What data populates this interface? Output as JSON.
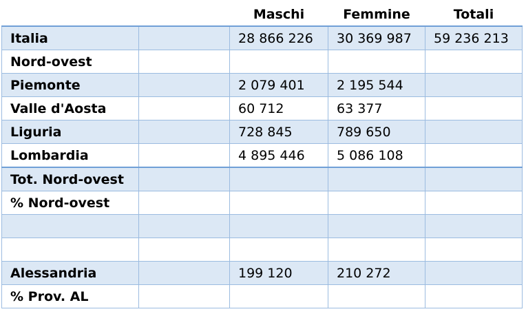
{
  "table": {
    "headers": [
      "",
      "",
      "Maschi",
      "Femmine",
      "Totali"
    ],
    "rows": [
      {
        "label": "Italia",
        "maschi": "28 866 226",
        "femmine": "30 369 987",
        "totali": "59 236 213"
      },
      {
        "label": "Nord-ovest",
        "maschi": "",
        "femmine": "",
        "totali": ""
      },
      {
        "label": "Piemonte",
        "maschi": "2 079 401",
        "femmine": "2 195 544",
        "totali": ""
      },
      {
        "label": "Valle d'Aosta",
        "maschi": "60 712",
        "femmine": "63 377",
        "totali": ""
      },
      {
        "label": "Liguria",
        "maschi": "728 845",
        "femmine": "789 650",
        "totali": ""
      },
      {
        "label": "Lombardia",
        "maschi": "4 895 446",
        "femmine": "5 086 108",
        "totali": ""
      },
      {
        "label": "Tot. Nord-ovest",
        "maschi": "",
        "femmine": "",
        "totali": ""
      },
      {
        "label": "% Nord-ovest",
        "maschi": "",
        "femmine": "",
        "totali": ""
      },
      {
        "label": "",
        "maschi": "",
        "femmine": "",
        "totali": ""
      },
      {
        "label": "",
        "maschi": "",
        "femmine": "",
        "totali": ""
      },
      {
        "label": "Alessandria",
        "maschi": "199 120",
        "femmine": "210 272",
        "totali": ""
      },
      {
        "label": "% Prov. AL",
        "maschi": "",
        "femmine": "",
        "totali": ""
      }
    ]
  },
  "colors": {
    "shade": "#dce8f5",
    "border": "#9bbbe0",
    "header_rule": "#6f9fd6"
  }
}
